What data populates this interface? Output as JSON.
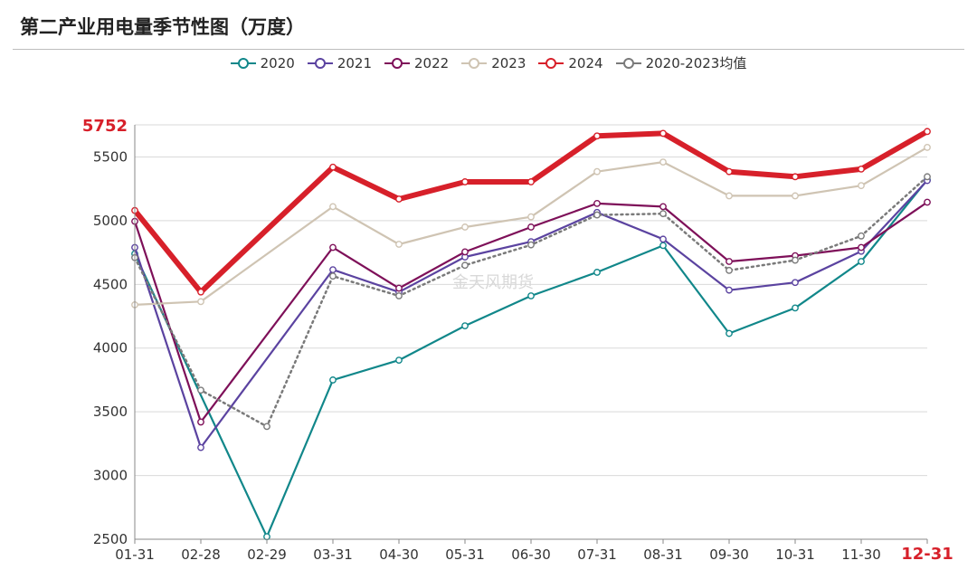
{
  "page_title": "第二产业用电量季节性图（万度）",
  "watermark": "金天风期货",
  "chart_data": {
    "type": "line",
    "title": "第二产业用电量季节性图（万度）",
    "categories": [
      "01-31",
      "02-28",
      "02-29",
      "03-31",
      "04-30",
      "05-31",
      "06-30",
      "07-31",
      "08-31",
      "09-30",
      "10-31",
      "11-30",
      "12-31"
    ],
    "highlighted_category": "12-31",
    "y_ticks": [
      2500,
      3000,
      3500,
      4000,
      4500,
      5000,
      5500
    ],
    "ylim": [
      2500,
      5752
    ],
    "y_highlight_label": "5752",
    "grid": true,
    "legend_position": "top-center",
    "series": [
      {
        "name": "2020",
        "color": "#11878a",
        "width": 2.2,
        "dash": false,
        "values": [
          4740,
          null,
          2520,
          3750,
          3905,
          4175,
          4410,
          4595,
          4805,
          4115,
          4315,
          4680,
          5320
        ]
      },
      {
        "name": "2021",
        "color": "#5b43a0",
        "width": 2.2,
        "dash": false,
        "values": [
          4790,
          3220,
          null,
          4615,
          4440,
          4715,
          4835,
          5065,
          4855,
          4455,
          4515,
          4760,
          5315
        ]
      },
      {
        "name": "2022",
        "color": "#7e1059",
        "width": 2.2,
        "dash": false,
        "values": [
          4995,
          3420,
          null,
          4790,
          4470,
          4755,
          4950,
          5135,
          5110,
          4680,
          4725,
          4790,
          5145
        ]
      },
      {
        "name": "2023",
        "color": "#cfc4b3",
        "width": 2.2,
        "dash": false,
        "values": [
          4340,
          4365,
          null,
          5110,
          4815,
          4950,
          5030,
          5385,
          5460,
          5195,
          5195,
          5275,
          5575
        ]
      },
      {
        "name": "2024",
        "color": "#d7202a",
        "width": 6,
        "dash": false,
        "values": [
          5080,
          4440,
          null,
          5420,
          5170,
          5305,
          5305,
          5665,
          5685,
          5385,
          5345,
          5405,
          5700
        ]
      },
      {
        "name": "2020-2023均值",
        "color": "#7a7a7a",
        "width": 2.5,
        "dash": true,
        "values": [
          4710,
          3670,
          3385,
          4565,
          4410,
          4650,
          4810,
          5045,
          5055,
          4610,
          4690,
          4880,
          5345
        ]
      }
    ]
  }
}
